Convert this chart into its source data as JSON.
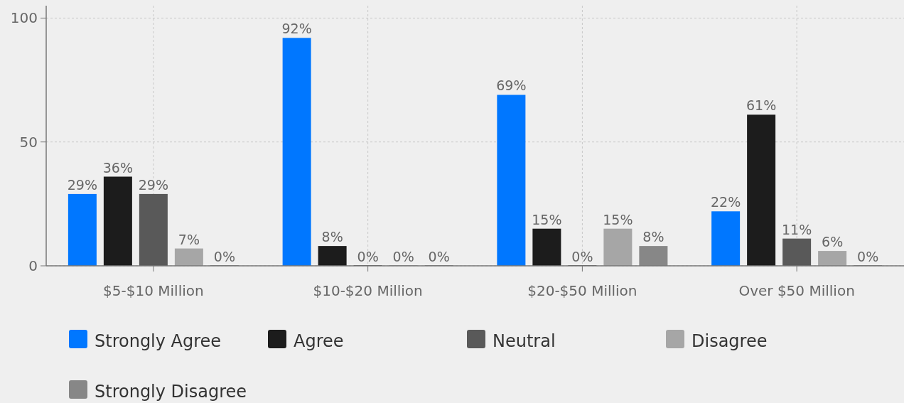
{
  "chart_data": {
    "type": "bar",
    "categories": [
      "$5-$10 Million",
      "$10-$20 Million",
      "$20-$50 Million",
      "Over $50 Million"
    ],
    "series": [
      {
        "name": "Strongly Agree",
        "color": "#0077ff",
        "values": [
          29,
          92,
          69,
          22
        ],
        "value_labels": [
          "29%",
          "92%",
          "69%",
          "22%"
        ]
      },
      {
        "name": "Agree",
        "color": "#1c1c1c",
        "values": [
          36,
          8,
          15,
          61
        ],
        "value_labels": [
          "36%",
          "8%",
          "15%",
          "61%"
        ]
      },
      {
        "name": "Neutral",
        "color": "#595959",
        "values": [
          29,
          0,
          0,
          11
        ],
        "value_labels": [
          "29%",
          "0%",
          "0%",
          "11%"
        ]
      },
      {
        "name": "Disagree",
        "color": "#a6a6a6",
        "values": [
          7,
          0,
          15,
          6
        ],
        "value_labels": [
          "7%",
          "0%",
          "15%",
          "6%"
        ]
      },
      {
        "name": "Strongly Disagree",
        "color": "#878787",
        "values": [
          0,
          0,
          8,
          0
        ],
        "value_labels": [
          "0%",
          "0%",
          "8%",
          "0%"
        ]
      }
    ],
    "ylim": [
      0,
      105
    ],
    "yticks": [
      0,
      50,
      100
    ],
    "grid": true,
    "legend": "bottom"
  }
}
